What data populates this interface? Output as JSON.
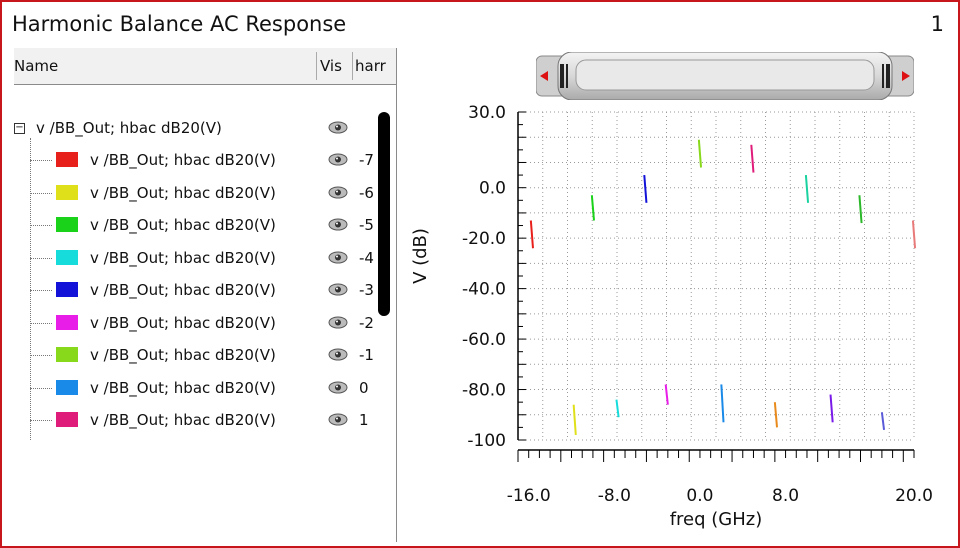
{
  "window": {
    "title": "Harmonic Balance AC Response",
    "page_number": "1"
  },
  "table": {
    "headers": {
      "name": "Name",
      "vis": "Vis",
      "harm": "harr"
    },
    "group": {
      "label": "v /BB_Out; hbac dB20(V)"
    },
    "rows": [
      {
        "label": "v /BB_Out; hbac dB20(V)",
        "harm": "-7",
        "color": "#e8201c"
      },
      {
        "label": "v /BB_Out; hbac dB20(V)",
        "harm": "-6",
        "color": "#e0e01a"
      },
      {
        "label": "v /BB_Out; hbac dB20(V)",
        "harm": "-5",
        "color": "#19d219"
      },
      {
        "label": "v /BB_Out; hbac dB20(V)",
        "harm": "-4",
        "color": "#17dcdc"
      },
      {
        "label": "v /BB_Out; hbac dB20(V)",
        "harm": "-3",
        "color": "#1212d8"
      },
      {
        "label": "v /BB_Out; hbac dB20(V)",
        "harm": "-2",
        "color": "#e81ee8"
      },
      {
        "label": "v /BB_Out; hbac dB20(V)",
        "harm": "-1",
        "color": "#88d81c"
      },
      {
        "label": "v /BB_Out; hbac dB20(V)",
        "harm": "0",
        "color": "#1a8ae8"
      },
      {
        "label": "v /BB_Out; hbac dB20(V)",
        "harm": "1",
        "color": "#e01c7a"
      }
    ]
  },
  "chart_data": {
    "type": "line",
    "xlabel": "freq (GHz)",
    "ylabel": "V (dB)",
    "xlim": [
      -17,
      20
    ],
    "ylim": [
      -100,
      30
    ],
    "xticks": [
      "-16.0",
      "-8.0",
      "0.0",
      "8.0",
      "20.0"
    ],
    "xtick_values": [
      -16,
      -8,
      0,
      8,
      20
    ],
    "yticks": [
      "30.0",
      "0.0",
      "-20.0",
      "-40.0",
      "-60.0",
      "-80.0",
      "-100"
    ],
    "ytick_values": [
      30,
      0,
      -20,
      -40,
      -60,
      -80,
      -100
    ],
    "grid": true,
    "series": [
      {
        "color": "#e8201c",
        "x": [
          -15.8,
          -15.6
        ],
        "y": [
          -13,
          -24
        ]
      },
      {
        "color": "#e0e01a",
        "x": [
          -11.8,
          -11.6
        ],
        "y": [
          -86,
          -98
        ]
      },
      {
        "color": "#19d219",
        "x": [
          -10.1,
          -9.9
        ],
        "y": [
          -3,
          -13
        ]
      },
      {
        "color": "#17dcdc",
        "x": [
          -7.8,
          -7.6
        ],
        "y": [
          -84,
          -91
        ]
      },
      {
        "color": "#1212d8",
        "x": [
          -5.2,
          -5.0
        ],
        "y": [
          5,
          -6
        ]
      },
      {
        "color": "#e81ee8",
        "x": [
          -3.2,
          -3.0
        ],
        "y": [
          -78,
          -86
        ]
      },
      {
        "color": "#88d81c",
        "x": [
          -0.1,
          0.1
        ],
        "y": [
          19,
          8
        ]
      },
      {
        "color": "#1a8ae8",
        "x": [
          2.0,
          2.2
        ],
        "y": [
          -78,
          -93
        ]
      },
      {
        "color": "#e01c7a",
        "x": [
          4.8,
          5.0
        ],
        "y": [
          17,
          6
        ]
      },
      {
        "color": "#e88a1c",
        "x": [
          7.0,
          7.2
        ],
        "y": [
          -85,
          -95
        ]
      },
      {
        "color": "#19d2a0",
        "x": [
          9.9,
          10.1
        ],
        "y": [
          5,
          -6
        ]
      },
      {
        "color": "#7a1ae8",
        "x": [
          12.2,
          12.4
        ],
        "y": [
          -82,
          -93
        ]
      },
      {
        "color": "#2ab82a",
        "x": [
          14.9,
          15.1
        ],
        "y": [
          -3,
          -14
        ]
      },
      {
        "color": "#5a5ad8",
        "x": [
          17.0,
          17.2
        ],
        "y": [
          -89,
          -96
        ]
      },
      {
        "color": "#e87a7a",
        "x": [
          19.9,
          20.1
        ],
        "y": [
          -13,
          -24
        ]
      }
    ]
  }
}
